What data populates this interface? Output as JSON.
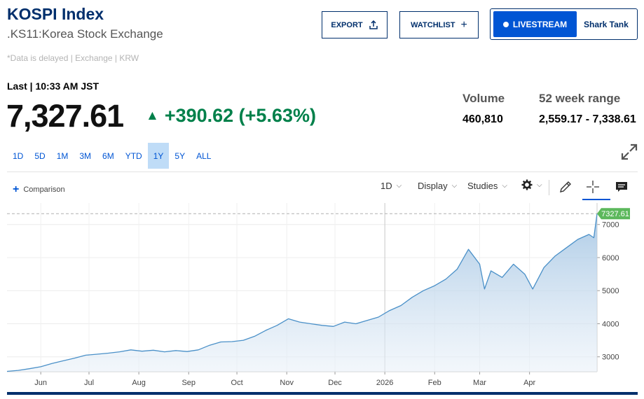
{
  "header": {
    "title": "KOSPI Index",
    "exchange": ".KS11:Korea Stock Exchange",
    "delayed_note": "*Data is delayed | Exchange | KRW"
  },
  "buttons": {
    "export": "EXPORT",
    "watchlist": "WATCHLIST",
    "livestream": "LIVESTREAM",
    "show": "Shark Tank"
  },
  "quote": {
    "last_label": "Last | 10:33 AM JST",
    "price": "7,327.61",
    "change": "+390.62 (+5.63%)",
    "volume_label": "Volume",
    "volume": "460,810",
    "range_label": "52 week range",
    "range": "2,559.17 - 7,338.61"
  },
  "ranges": [
    "1D",
    "5D",
    "1M",
    "3M",
    "6M",
    "YTD",
    "1Y",
    "5Y",
    "ALL"
  ],
  "active_range": "1Y",
  "toolbar": {
    "comparison": "Comparison",
    "interval": "1D",
    "display": "Display",
    "studies": "Studies"
  },
  "colors": {
    "brand": "#002f6c",
    "accent": "#0055d4",
    "positive": "#00804a",
    "line": "#4a90c8",
    "last_tag": "#5cb85c"
  },
  "icons": [
    "export-icon",
    "plus-icon",
    "expand-icon",
    "gear-icon",
    "pencil-icon",
    "crosshair-icon",
    "comment-icon",
    "up-arrow-icon"
  ],
  "chart_data": {
    "type": "area",
    "x_labels": [
      "Jun",
      "Jul",
      "Aug",
      "Sep",
      "Oct",
      "Nov",
      "Dec",
      "2026",
      "Feb",
      "Mar",
      "Apr"
    ],
    "y_ticks": [
      "3000",
      "4000",
      "5000",
      "6000",
      "7000"
    ],
    "ylim": [
      2550,
      7650
    ],
    "last_value_label": "7327.61",
    "grid": true,
    "series": [
      {
        "values": [
          {
            "x": "2025-05-11",
            "y": 2560
          },
          {
            "x": "2025-05-18",
            "y": 2590
          },
          {
            "x": "2025-05-25",
            "y": 2640
          },
          {
            "x": "2025-06-01",
            "y": 2700
          },
          {
            "x": "2025-06-08",
            "y": 2800
          },
          {
            "x": "2025-06-15",
            "y": 2880
          },
          {
            "x": "2025-06-22",
            "y": 2960
          },
          {
            "x": "2025-06-29",
            "y": 3050
          },
          {
            "x": "2025-07-06",
            "y": 3080
          },
          {
            "x": "2025-07-13",
            "y": 3110
          },
          {
            "x": "2025-07-20",
            "y": 3150
          },
          {
            "x": "2025-07-27",
            "y": 3210
          },
          {
            "x": "2025-08-03",
            "y": 3170
          },
          {
            "x": "2025-08-10",
            "y": 3200
          },
          {
            "x": "2025-08-17",
            "y": 3150
          },
          {
            "x": "2025-08-24",
            "y": 3190
          },
          {
            "x": "2025-08-31",
            "y": 3160
          },
          {
            "x": "2025-09-07",
            "y": 3210
          },
          {
            "x": "2025-09-14",
            "y": 3350
          },
          {
            "x": "2025-09-21",
            "y": 3450
          },
          {
            "x": "2025-09-28",
            "y": 3460
          },
          {
            "x": "2025-10-05",
            "y": 3500
          },
          {
            "x": "2025-10-12",
            "y": 3620
          },
          {
            "x": "2025-10-19",
            "y": 3800
          },
          {
            "x": "2025-10-26",
            "y": 3950
          },
          {
            "x": "2025-11-02",
            "y": 4150
          },
          {
            "x": "2025-11-09",
            "y": 4050
          },
          {
            "x": "2025-11-16",
            "y": 4000
          },
          {
            "x": "2025-11-23",
            "y": 3950
          },
          {
            "x": "2025-11-30",
            "y": 3920
          },
          {
            "x": "2025-12-07",
            "y": 4050
          },
          {
            "x": "2025-12-14",
            "y": 4000
          },
          {
            "x": "2025-12-21",
            "y": 4100
          },
          {
            "x": "2025-12-28",
            "y": 4200
          },
          {
            "x": "2026-01-04",
            "y": 4400
          },
          {
            "x": "2026-01-11",
            "y": 4550
          },
          {
            "x": "2026-01-18",
            "y": 4800
          },
          {
            "x": "2026-01-25",
            "y": 5000
          },
          {
            "x": "2026-02-01",
            "y": 5150
          },
          {
            "x": "2026-02-08",
            "y": 5350
          },
          {
            "x": "2026-02-15",
            "y": 5650
          },
          {
            "x": "2026-02-22",
            "y": 6250
          },
          {
            "x": "2026-03-01",
            "y": 5800
          },
          {
            "x": "2026-03-04",
            "y": 5050
          },
          {
            "x": "2026-03-08",
            "y": 5600
          },
          {
            "x": "2026-03-15",
            "y": 5400
          },
          {
            "x": "2026-03-22",
            "y": 5800
          },
          {
            "x": "2026-03-29",
            "y": 5500
          },
          {
            "x": "2026-04-03",
            "y": 5050
          },
          {
            "x": "2026-04-10",
            "y": 5700
          },
          {
            "x": "2026-04-17",
            "y": 6050
          },
          {
            "x": "2026-04-24",
            "y": 6300
          },
          {
            "x": "2026-05-01",
            "y": 6550
          },
          {
            "x": "2026-05-08",
            "y": 6700
          },
          {
            "x": "2026-05-11",
            "y": 6600
          },
          {
            "x": "2026-05-13",
            "y": 7327.61
          }
        ]
      }
    ]
  }
}
